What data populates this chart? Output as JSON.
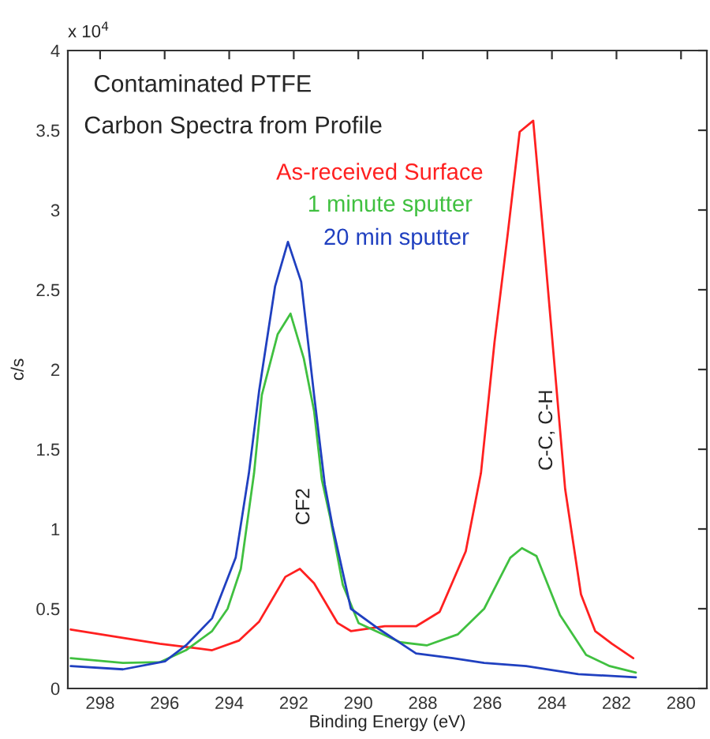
{
  "chart_data": {
    "type": "line",
    "title": "Contaminated PTFE",
    "subtitle": "Carbon Spectra from Profile",
    "xlabel": "Binding Energy (eV)",
    "ylabel": "c/s",
    "xlim": [
      299,
      279.2
    ],
    "xticks": [
      298,
      296,
      294,
      292,
      290,
      288,
      286,
      284,
      282,
      280
    ],
    "ylim": [
      0,
      4
    ],
    "yticks": [
      0,
      0.5,
      1,
      1.5,
      2,
      2.5,
      3,
      3.5,
      4
    ],
    "annotations": [
      "x 10$^{4}$",
      "CF2",
      "C-C, C-H"
    ],
    "legend": false,
    "grid": false,
    "series": [
      {
        "name": "As-received Surface",
        "color": "#ff2020",
        "x": [
          298.91,
          296.15,
          294.53,
          293.7,
          293.07,
          292.26,
          291.81,
          291.37,
          290.64,
          290.23,
          289.18,
          288.21,
          287.48,
          286.67,
          286.2,
          285.78,
          285.37,
          285.0,
          284.58,
          284.27,
          283.59,
          283.1,
          282.66,
          282.14,
          281.48
        ],
        "values": [
          0.37,
          0.28,
          0.24,
          0.3,
          0.42,
          0.7,
          0.75,
          0.66,
          0.41,
          0.36,
          0.39,
          0.39,
          0.48,
          0.86,
          1.35,
          2.17,
          2.85,
          3.49,
          3.56,
          2.85,
          1.25,
          0.59,
          0.36,
          0.28,
          0.19
        ]
      },
      {
        "name": "1 minute sputter",
        "color": "#40c040",
        "x": [
          298.91,
          297.29,
          296.15,
          295.34,
          294.53,
          294.05,
          293.64,
          293.23,
          292.99,
          292.5,
          292.1,
          291.69,
          291.37,
          291.13,
          290.88,
          290.48,
          289.99,
          288.7,
          287.88,
          286.91,
          286.1,
          285.29,
          284.93,
          284.48,
          283.75,
          282.94,
          282.21,
          281.4
        ],
        "values": [
          0.19,
          0.16,
          0.165,
          0.24,
          0.36,
          0.5,
          0.75,
          1.35,
          1.84,
          2.22,
          2.35,
          2.07,
          1.74,
          1.31,
          1.08,
          0.65,
          0.41,
          0.29,
          0.27,
          0.34,
          0.5,
          0.82,
          0.88,
          0.83,
          0.46,
          0.21,
          0.14,
          0.1
        ]
      },
      {
        "name": "20 min sputter",
        "color": "#2040c0",
        "x": [
          298.91,
          297.29,
          295.99,
          295.34,
          294.53,
          293.8,
          293.39,
          293.07,
          292.58,
          292.18,
          291.77,
          291.37,
          291.04,
          290.8,
          290.23,
          289.34,
          288.21,
          287.07,
          286.1,
          284.8,
          283.18,
          281.4
        ],
        "values": [
          0.14,
          0.12,
          0.17,
          0.27,
          0.44,
          0.82,
          1.35,
          1.87,
          2.52,
          2.8,
          2.55,
          1.84,
          1.28,
          1.02,
          0.5,
          0.37,
          0.22,
          0.19,
          0.16,
          0.14,
          0.09,
          0.07
        ]
      }
    ]
  }
}
